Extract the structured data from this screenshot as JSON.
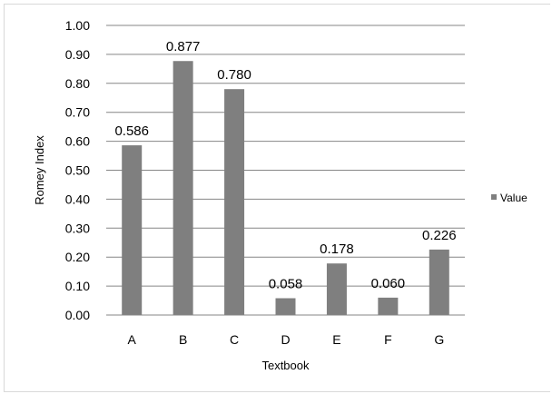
{
  "chart_data": {
    "type": "bar",
    "categories": [
      "A",
      "B",
      "C",
      "D",
      "E",
      "F",
      "G"
    ],
    "series": [
      {
        "name": "Value",
        "values": [
          0.586,
          0.877,
          0.78,
          0.058,
          0.178,
          0.06,
          0.226
        ],
        "data_labels": [
          "0.586",
          "0.877",
          "0.780",
          "0.058",
          "0.178",
          "0.060",
          "0.226"
        ],
        "color": "#7f7f7f"
      }
    ],
    "title": "",
    "xlabel": "Textbook",
    "ylabel": "Romey Index",
    "ylim": [
      0,
      1.0
    ],
    "y_ticks": [
      "0.00",
      "0.10",
      "0.20",
      "0.30",
      "0.40",
      "0.50",
      "0.60",
      "0.70",
      "0.80",
      "0.90",
      "1.00"
    ],
    "grid": true,
    "legend_position": "right"
  }
}
